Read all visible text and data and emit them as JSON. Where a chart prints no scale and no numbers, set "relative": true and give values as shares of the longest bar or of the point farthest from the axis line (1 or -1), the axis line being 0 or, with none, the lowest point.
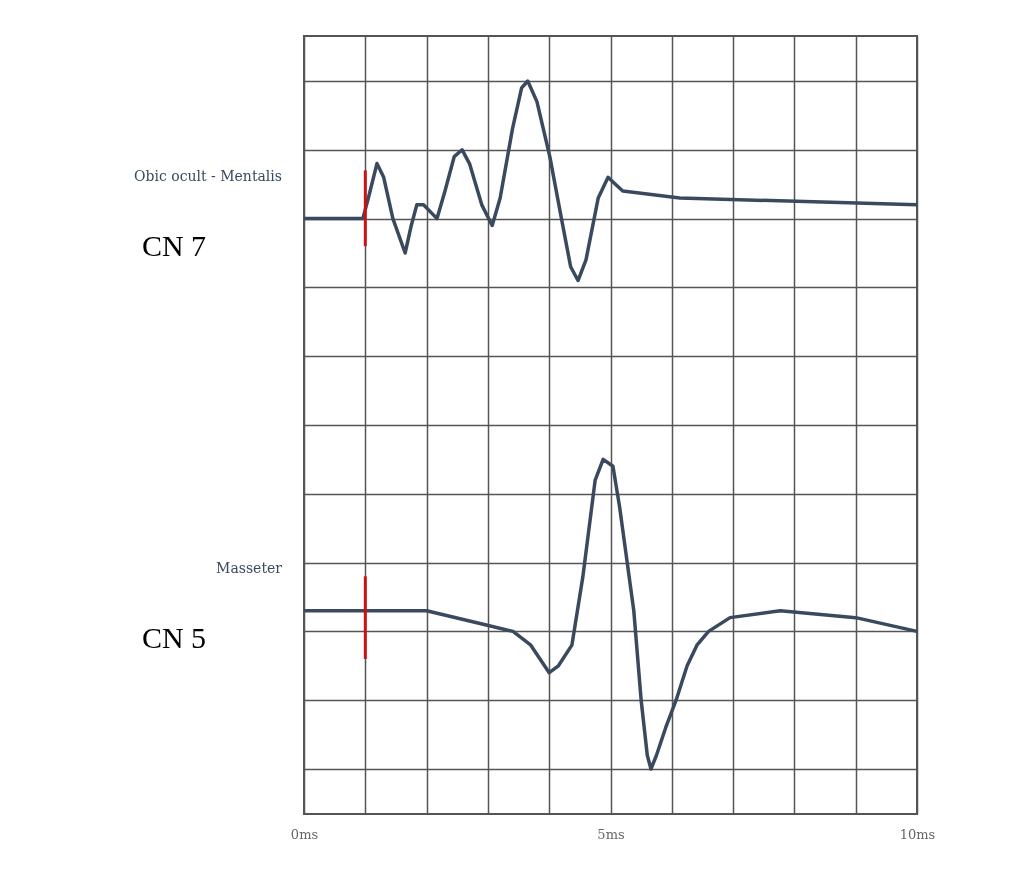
{
  "chart_data": {
    "type": "line",
    "relative": true,
    "xlim": [
      0,
      10
    ],
    "xticks": [
      {
        "value": 0,
        "label": "0ms"
      },
      {
        "value": 1,
        "label": null
      },
      {
        "value": 2,
        "label": null
      },
      {
        "value": 3,
        "label": null
      },
      {
        "value": 4,
        "label": null
      },
      {
        "value": 5,
        "label": "5ms"
      },
      {
        "value": 6,
        "label": null
      },
      {
        "value": 7,
        "label": null
      },
      {
        "value": 8,
        "label": null
      },
      {
        "value": 9,
        "label": null
      },
      {
        "value": 10,
        "label": "10ms"
      }
    ],
    "grid": true,
    "marker": "none",
    "line_style": "solid",
    "series": [
      {
        "name": "Obic ocult - Mentalis",
        "color": "#3a4a5e",
        "x": [
          0,
          0.96,
          1.05,
          1.19,
          1.3,
          1.45,
          1.65,
          1.75,
          1.84,
          1.95,
          2.17,
          2.3,
          2.45,
          2.58,
          2.7,
          2.9,
          3.07,
          3.2,
          3.4,
          3.55,
          3.65,
          3.8,
          4.01,
          4.2,
          4.35,
          4.47,
          4.6,
          4.8,
          4.96,
          5.08,
          5.2,
          6.13,
          10
        ],
        "values": [
          0.8,
          0.8,
          0.83,
          0.88,
          0.86,
          0.8,
          0.75,
          0.79,
          0.82,
          0.82,
          0.8,
          0.84,
          0.89,
          0.9,
          0.88,
          0.82,
          0.79,
          0.83,
          0.93,
          0.99,
          1,
          0.97,
          0.89,
          0.8,
          0.73,
          0.71,
          0.74,
          0.83,
          0.86,
          0.85,
          0.84,
          0.83,
          0.82
        ]
      },
      {
        "name": "Masseter",
        "color": "#3a4a5e",
        "x": [
          0,
          1,
          2,
          2.94,
          3.41,
          3.7,
          3.85,
          4,
          4.15,
          4.37,
          4.55,
          4.75,
          4.88,
          5.04,
          5.15,
          5.38,
          5.5,
          5.6,
          5.66,
          5.75,
          5.9,
          6.07,
          6.25,
          6.41,
          6.6,
          6.95,
          7.77,
          9,
          10
        ],
        "values": [
          0.23,
          0.23,
          0.23,
          0.21,
          0.2,
          0.18,
          0.16,
          0.14,
          0.15,
          0.18,
          0.28,
          0.42,
          0.45,
          0.44,
          0.38,
          0.23,
          0.1,
          0.02,
          0,
          0.02,
          0.06,
          0.1,
          0.15,
          0.18,
          0.2,
          0.22,
          0.23,
          0.22,
          0.2
        ]
      },
      {
        "type": "line",
        "color": "#cc1111",
        "x": [
          1,
          1
        ],
        "values": [
          0.76,
          0.87
        ]
      },
      {
        "type": "line",
        "color": "#cc1111",
        "x": [
          1,
          1
        ],
        "values": [
          0.16,
          0.28
        ]
      }
    ],
    "annotations": [
      "CN 7",
      "CN 5"
    ]
  }
}
